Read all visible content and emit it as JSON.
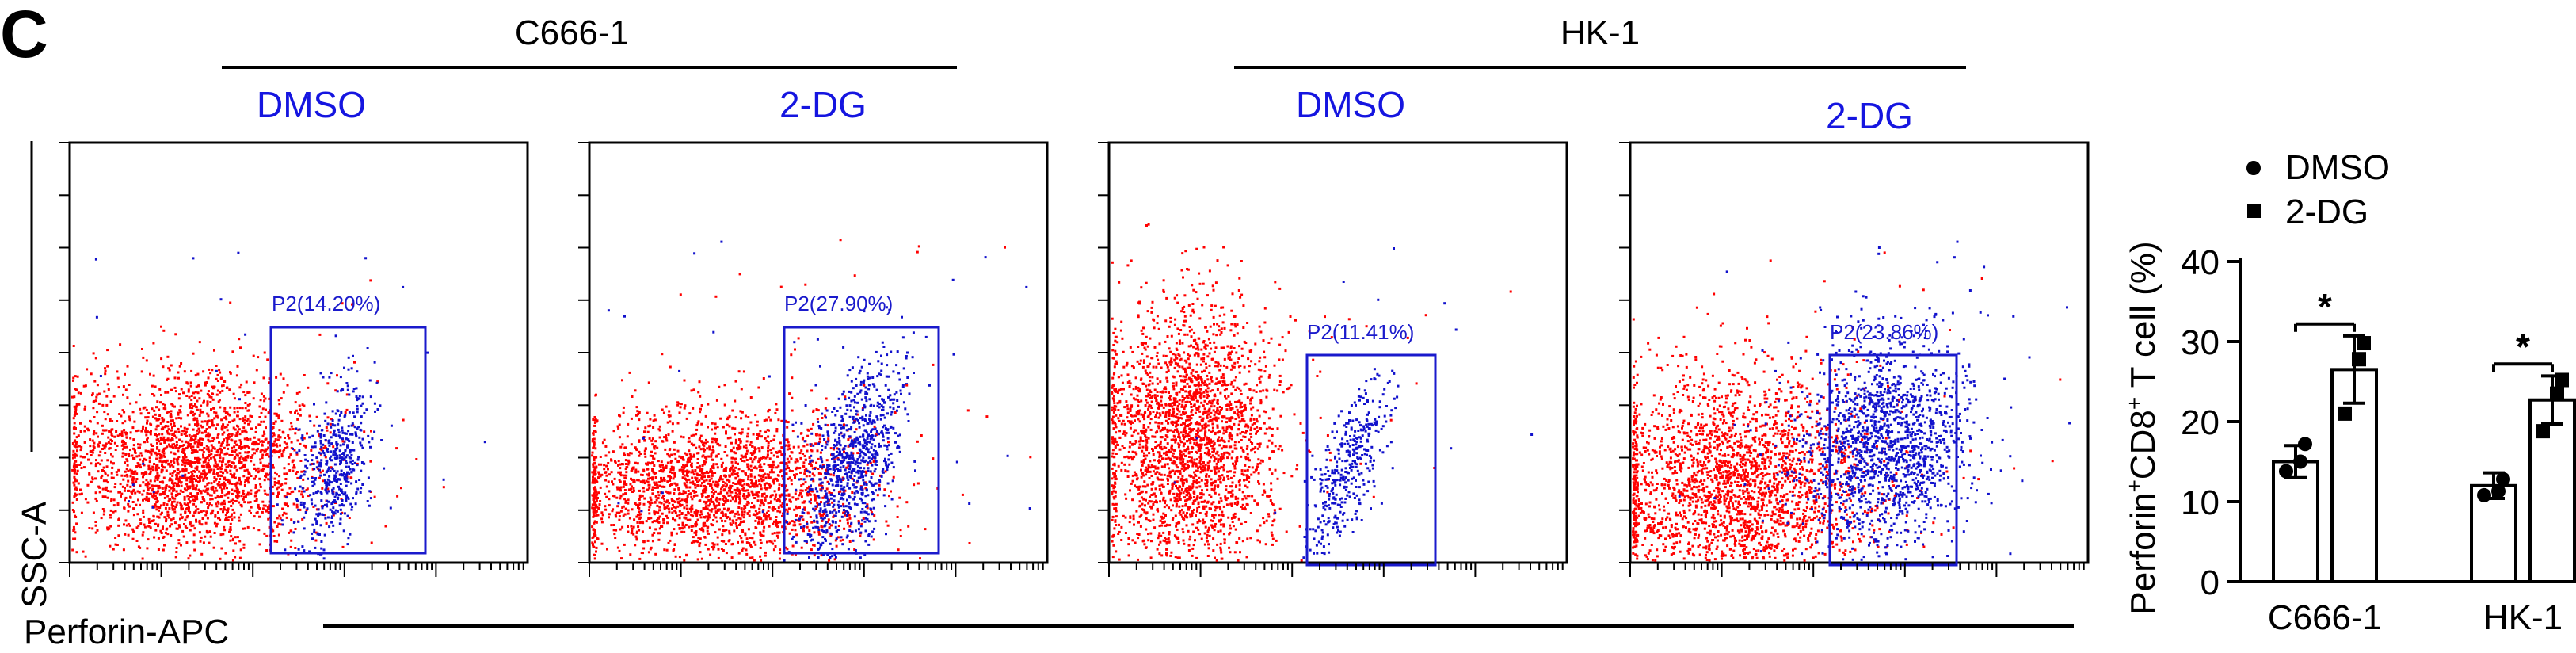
{
  "panel_letter": "C",
  "colors": {
    "negative_events": "#ff0000",
    "positive_events": "#1111cc",
    "label_blue": "#1515e0",
    "gate": "#1a1acc",
    "axis": "#000000"
  },
  "chart_data": [
    {
      "type": "scatter",
      "kind": "flow-cytometry",
      "cell_line": "C666-1",
      "treatment": "DMSO",
      "gate_label": "P2(14.20%)",
      "gate_percent": 14.2,
      "xlabel": "Perforin-APC",
      "ylabel": "SSC-A"
    },
    {
      "type": "scatter",
      "kind": "flow-cytometry",
      "cell_line": "C666-1",
      "treatment": "2-DG",
      "gate_label": "P2(27.90%)",
      "gate_percent": 27.9,
      "xlabel": "Perforin-APC",
      "ylabel": "SSC-A"
    },
    {
      "type": "scatter",
      "kind": "flow-cytometry",
      "cell_line": "HK-1",
      "treatment": "DMSO",
      "gate_label": "P2(11.41%)",
      "gate_percent": 11.41,
      "xlabel": "Perforin-APC",
      "ylabel": "SSC-A"
    },
    {
      "type": "scatter",
      "kind": "flow-cytometry",
      "cell_line": "HK-1",
      "treatment": "2-DG",
      "gate_label": "P2(23.86%)",
      "gate_percent": 23.86,
      "xlabel": "Perforin-APC",
      "ylabel": "SSC-A"
    },
    {
      "type": "bar",
      "categories": [
        "C666-1",
        "HK-1"
      ],
      "ylabel_parts": [
        "Perforin",
        "+",
        "CD8",
        "+",
        " T cell (%)"
      ],
      "ylim": [
        0,
        40
      ],
      "yticks": [
        0,
        10,
        20,
        30,
        40
      ],
      "legend_position": "top",
      "series": [
        {
          "name": "DMSO",
          "marker": "circle",
          "values": [
            15,
            12
          ],
          "error": [
            2,
            1.6
          ],
          "points": [
            [
              13.8,
              15.0,
              17.2
            ],
            [
              10.8,
              11.3,
              12.8
            ]
          ]
        },
        {
          "name": "2-DG",
          "marker": "square",
          "values": [
            26.5,
            22.7
          ],
          "error": [
            4.2,
            3.0
          ],
          "points": [
            [
              21.0,
              27.8,
              29.8
            ],
            [
              18.8,
              23.5,
              25.2
            ]
          ]
        }
      ],
      "significance": [
        "*",
        "*"
      ]
    }
  ],
  "group_headers": [
    {
      "label": "C666-1"
    },
    {
      "label": "HK-1"
    }
  ]
}
